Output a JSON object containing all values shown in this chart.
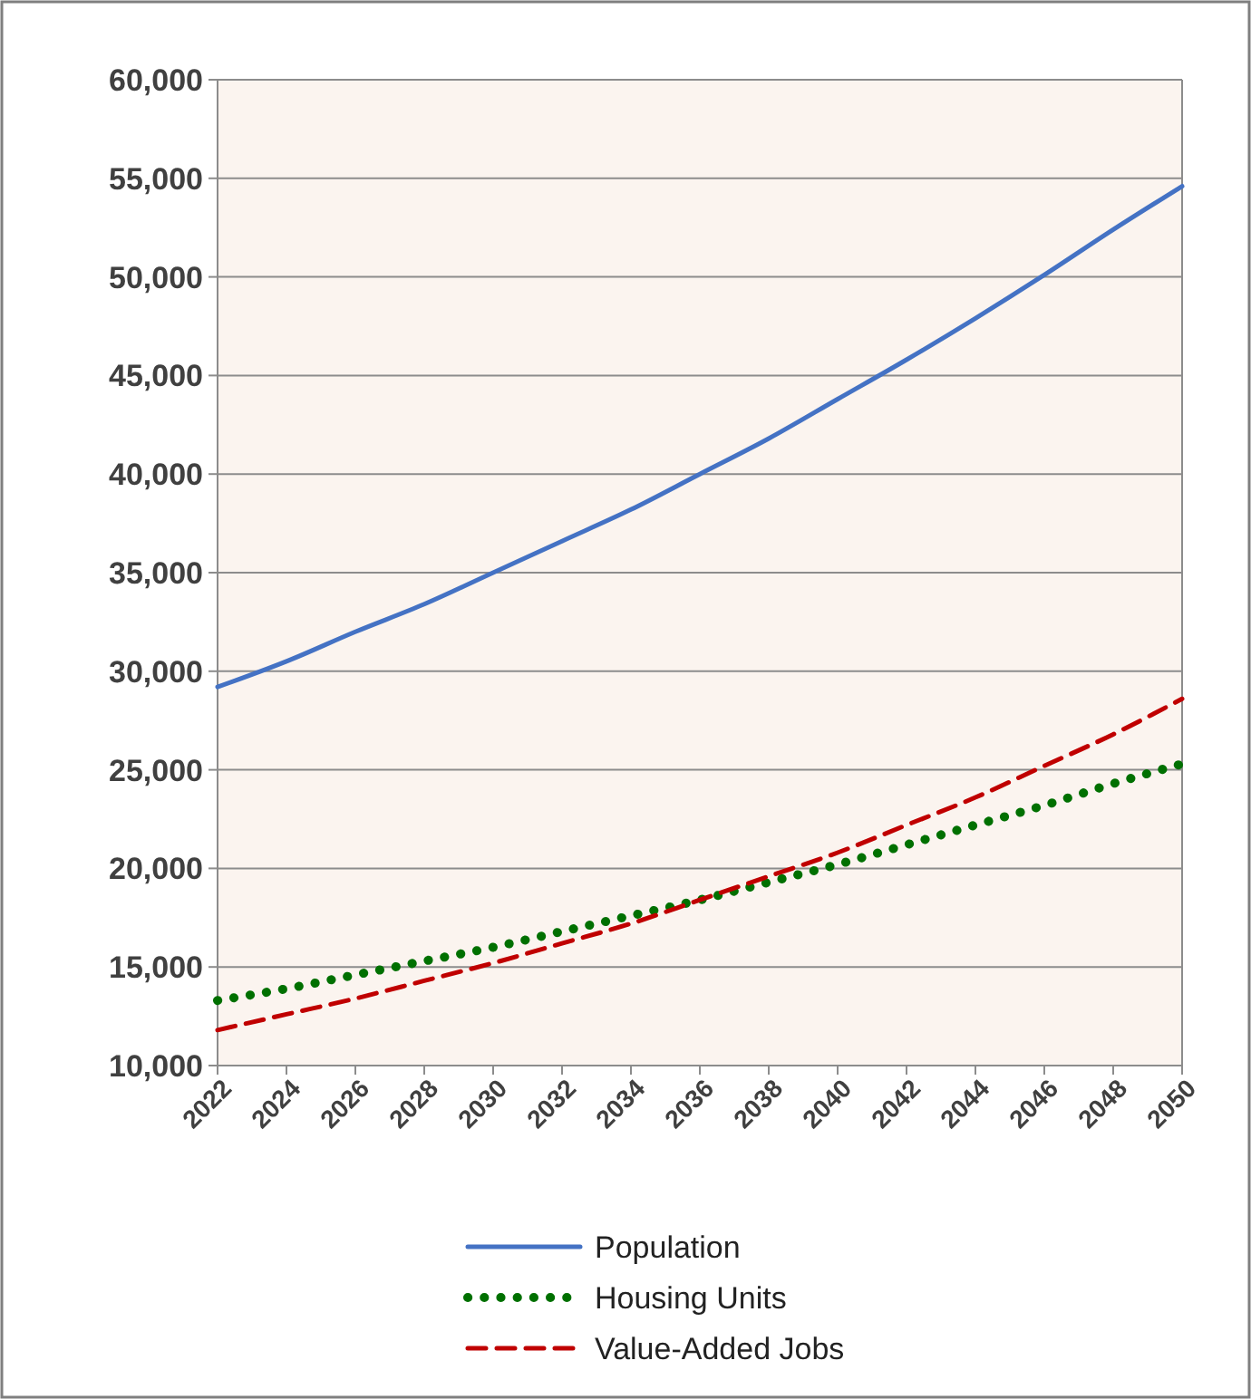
{
  "chart_data": {
    "type": "line",
    "x": [
      2022,
      2024,
      2026,
      2028,
      2030,
      2032,
      2034,
      2036,
      2038,
      2040,
      2042,
      2044,
      2046,
      2048,
      2050
    ],
    "xlim": [
      2022,
      2050
    ],
    "xticks": [
      2022,
      2024,
      2026,
      2028,
      2030,
      2032,
      2034,
      2036,
      2038,
      2040,
      2042,
      2044,
      2046,
      2048,
      2050
    ],
    "ylim": [
      10000,
      60000
    ],
    "yticks": [
      {
        "value": 10000,
        "label": "10,000"
      },
      {
        "value": 15000,
        "label": "15,000"
      },
      {
        "value": 20000,
        "label": "20,000"
      },
      {
        "value": 25000,
        "label": "25,000"
      },
      {
        "value": 30000,
        "label": "30,000"
      },
      {
        "value": 35000,
        "label": "35,000"
      },
      {
        "value": 40000,
        "label": "40,000"
      },
      {
        "value": 45000,
        "label": "45,000"
      },
      {
        "value": 50000,
        "label": "50,000"
      },
      {
        "value": 55000,
        "label": "55,000"
      },
      {
        "value": 60000,
        "label": "60,000"
      }
    ],
    "grid": "y",
    "legend": "bottom",
    "series": [
      {
        "name": "Population",
        "color": "#4472c4",
        "line_style": "solid",
        "values": [
          29200,
          30500,
          32000,
          33400,
          35000,
          36600,
          38200,
          40000,
          41800,
          43800,
          45800,
          47900,
          50100,
          52400,
          54600
        ]
      },
      {
        "name": "Housing Units",
        "color": "#007000",
        "line_style": "dotted",
        "values": [
          13300,
          13900,
          14600,
          15300,
          16000,
          16800,
          17600,
          18400,
          19300,
          20200,
          21200,
          22200,
          23200,
          24300,
          25300
        ]
      },
      {
        "name": "Value-Added Jobs",
        "color": "#c00000",
        "line_style": "dashed",
        "values": [
          11800,
          12600,
          13400,
          14300,
          15200,
          16200,
          17200,
          18400,
          19600,
          20800,
          22200,
          23600,
          25200,
          26800,
          28600
        ]
      }
    ]
  }
}
